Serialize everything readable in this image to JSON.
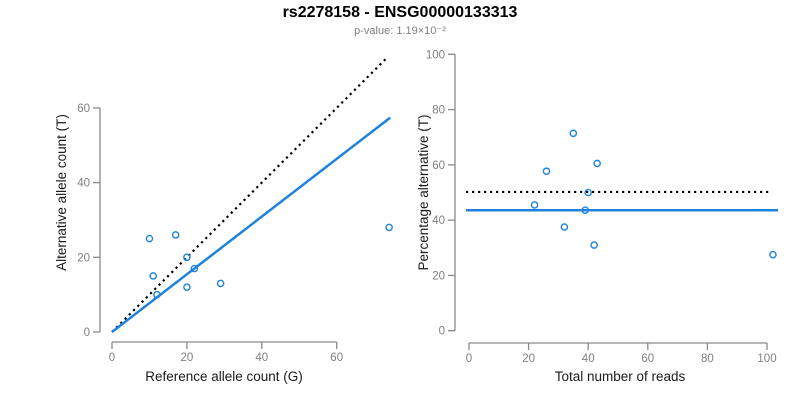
{
  "figure": {
    "title": "rs2278158 - ENSG00000133313",
    "subtitle": "p-value: 1.19×10⁻²"
  },
  "colors": {
    "accent_blue": "#1E82DE",
    "line_black": "#000000",
    "axis_gray": "#8a8a8a",
    "tick_label_gray": "#7f7f7f",
    "axis_title_black": "#1a1a1a"
  },
  "chart_data": [
    {
      "type": "scatter",
      "name": "allele-count-scatter",
      "xlabel": "Reference allele count (G)",
      "ylabel": "Alternative allele count (T)",
      "xticks": [
        0,
        20,
        40,
        60
      ],
      "yticks": [
        0,
        20,
        40,
        60
      ],
      "xlim": [
        0,
        74.3
      ],
      "ylim": [
        0,
        74.7
      ],
      "grid": false,
      "points": [
        [
          10,
          25
        ],
        [
          11,
          15
        ],
        [
          12,
          10
        ],
        [
          17,
          26
        ],
        [
          20,
          20
        ],
        [
          20,
          12
        ],
        [
          22,
          17
        ],
        [
          29,
          13
        ],
        [
          74,
          28
        ]
      ],
      "lines": [
        {
          "name": "identity-line",
          "style": "dotted",
          "color": "#000000",
          "x": [
            0,
            73.6
          ],
          "y": [
            0,
            73.6
          ]
        },
        {
          "name": "fit-line",
          "style": "solid",
          "color": "#1E82DE",
          "x": [
            0,
            74.3
          ],
          "y": [
            0,
            57.4
          ]
        }
      ]
    },
    {
      "type": "scatter",
      "name": "percentage-scatter",
      "xlabel": "Total number of reads",
      "ylabel": "Percentage alternative (T)",
      "xticks": [
        0,
        20,
        40,
        60,
        80,
        100
      ],
      "yticks": [
        0,
        20,
        40,
        60,
        80,
        100
      ],
      "xlim": [
        -1,
        103.7
      ],
      "ylim": [
        0,
        100
      ],
      "grid": false,
      "points": [
        [
          22,
          45.5
        ],
        [
          26,
          57.7
        ],
        [
          32,
          37.5
        ],
        [
          35,
          71.4
        ],
        [
          39,
          43.6
        ],
        [
          40,
          50
        ],
        [
          42,
          31
        ],
        [
          43,
          60.5
        ],
        [
          102,
          27.5
        ]
      ],
      "lines": [
        {
          "name": "expected-50pct-line",
          "style": "dotted",
          "color": "#000000",
          "x": [
            -1,
            101.3
          ],
          "y": [
            50.2,
            50.2
          ]
        },
        {
          "name": "mean-pct-line",
          "style": "solid",
          "color": "#1E82DE",
          "x": [
            -1,
            103.7
          ],
          "y": [
            43.6,
            43.6
          ]
        }
      ]
    }
  ]
}
